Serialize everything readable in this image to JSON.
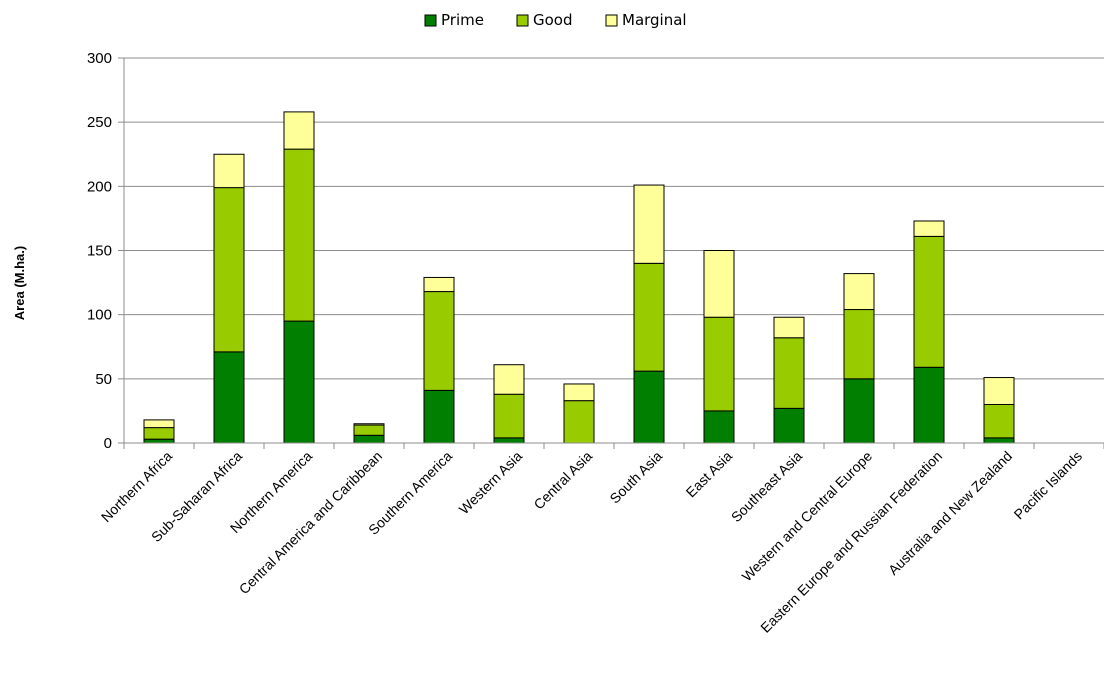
{
  "chart_data": {
    "type": "bar",
    "stacked": true,
    "ylabel": "Area (M.ha.)",
    "xlabel": "",
    "ylim": [
      0,
      300
    ],
    "yticks": [
      "0",
      "50",
      "100",
      "150",
      "200",
      "250",
      "300"
    ],
    "grid": true,
    "legend_position": "top",
    "categories": [
      "Northern Africa",
      "Sub-Saharan Africa",
      "Northern America",
      "Central America and Caribbean",
      "Southern America",
      "Western Asia",
      "Central Asia",
      "South Asia",
      "East Asia",
      "Southeast Asia",
      "Western and Central Europe",
      "Eastern Europe and Russian Federation",
      "Australia and New Zealand",
      "Pacific Islands"
    ],
    "series": [
      {
        "name": "Prime",
        "color": "#007f00",
        "values": [
          3,
          71,
          95,
          6,
          41,
          4,
          0,
          56,
          25,
          27,
          50,
          59,
          4,
          0
        ]
      },
      {
        "name": "Good",
        "color": "#99cc00",
        "values": [
          9,
          128,
          134,
          8,
          77,
          34,
          33,
          84,
          73,
          55,
          54,
          102,
          26,
          0
        ]
      },
      {
        "name": "Marginal",
        "color": "#ffff99",
        "values": [
          6,
          26,
          29,
          1,
          11,
          23,
          13,
          61,
          52,
          16,
          28,
          12,
          21,
          0
        ]
      }
    ]
  }
}
